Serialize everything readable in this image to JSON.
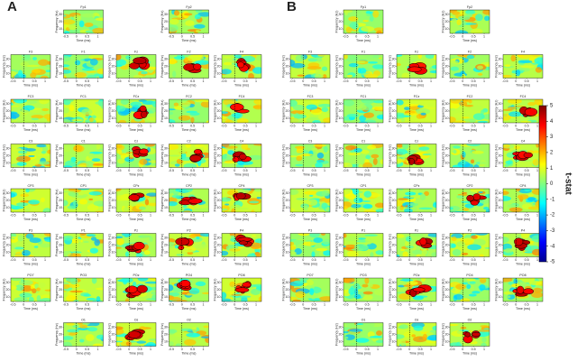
{
  "panels": [
    {
      "label": "A",
      "rows": [
        [
          "Fp1",
          "Fp2"
        ],
        [
          "F3",
          "F1",
          "Fz",
          "F2",
          "F4"
        ],
        [
          "FC3",
          "FC1",
          "FCz",
          "FC2",
          "FC4"
        ],
        [
          "C3",
          "C1",
          "Cz",
          "C2",
          "C4"
        ],
        [
          "CP3",
          "CP1",
          "CPz",
          "CP2",
          "CP4"
        ],
        [
          "P3",
          "P1",
          "Pz",
          "P2",
          "P4"
        ],
        [
          "PO7",
          "PO3",
          "POz",
          "PO4",
          "PO8"
        ],
        [
          "O1",
          "Oz",
          "O2"
        ]
      ]
    },
    {
      "label": "B",
      "rows": [
        [
          "Fp1",
          "Fp2"
        ],
        [
          "F3",
          "F1",
          "Fz",
          "F2",
          "F4"
        ],
        [
          "FC3",
          "FC1",
          "FCz",
          "FC2",
          "FC4"
        ],
        [
          "C3",
          "C1",
          "Cz",
          "C2",
          "C4"
        ],
        [
          "CP3",
          "CP1",
          "CPz",
          "CP2",
          "CP4"
        ],
        [
          "P3",
          "P1",
          "Pz",
          "P2",
          "P4"
        ],
        [
          "PO7",
          "PO3",
          "POz",
          "PO4",
          "PO8"
        ],
        [
          "O1",
          "Oz",
          "O2"
        ]
      ]
    }
  ],
  "plot_axes": {
    "x_label": "Time (ms)",
    "y_label": "Frequency (Hz)",
    "xlim": [
      -0.6,
      1.25
    ],
    "xticks": [
      -0.5,
      0,
      0.5,
      1
    ],
    "ylim": [
      4,
      36
    ],
    "yticks": [
      10,
      20,
      30
    ]
  },
  "colorbar": {
    "label": "t-stat",
    "lim": [
      -5,
      5
    ],
    "ticks": [
      5,
      4,
      3,
      2,
      1,
      0,
      -1,
      -2,
      -3,
      -4,
      -5
    ]
  }
}
